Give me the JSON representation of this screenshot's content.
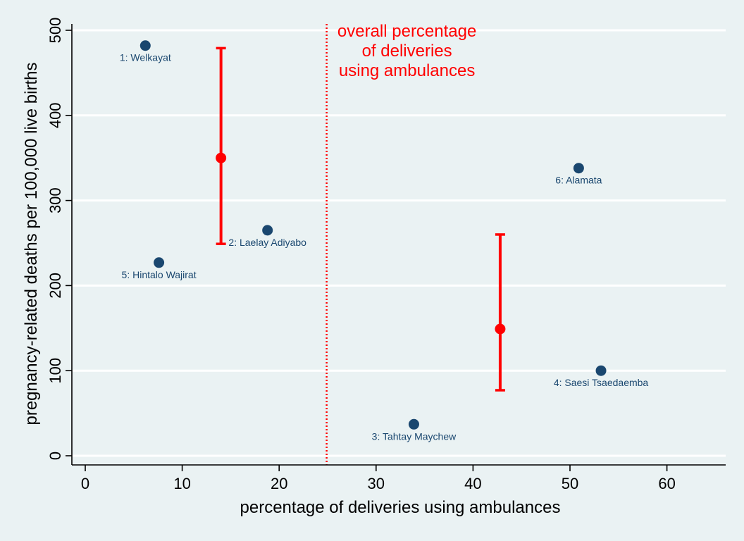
{
  "chart_data": {
    "type": "scatter",
    "xlabel": "percentage of deliveries using ambulances",
    "ylabel": "pregnancy-related deaths per 100,000 live births",
    "xlim": [
      0,
      66
    ],
    "ylim": [
      0,
      500
    ],
    "xticks": [
      0,
      10,
      20,
      30,
      40,
      50,
      60
    ],
    "yticks": [
      0,
      100,
      200,
      300,
      400,
      500
    ],
    "grid": "horizontal",
    "points": [
      {
        "label": "1: Welkayat",
        "x": 6.2,
        "y": 482
      },
      {
        "label": "2: Laelay Adiyabo",
        "x": 18.8,
        "y": 265
      },
      {
        "label": "3: Tahtay Maychew",
        "x": 33.9,
        "y": 37
      },
      {
        "label": "4: Saesi Tsaedaemba",
        "x": 53.2,
        "y": 100
      },
      {
        "label": "5: Hintalo Wajirat",
        "x": 7.6,
        "y": 227
      },
      {
        "label": "6: Alamata",
        "x": 50.9,
        "y": 338
      }
    ],
    "error_bars": [
      {
        "x": 14.0,
        "y": 350,
        "low": 249,
        "high": 479
      },
      {
        "x": 42.8,
        "y": 149,
        "low": 77,
        "high": 260
      }
    ],
    "reference_line": {
      "x": 24.9,
      "annotation": [
        "overall percentage",
        "of deliveries",
        "using ambulances"
      ]
    },
    "colors": {
      "points": "#1a476f",
      "labels": "#1a476f",
      "error_bars": "#ff0000",
      "reference_line": "#ff0000",
      "plot_background": "#eaf2f3",
      "grid": "#ffffff"
    }
  }
}
